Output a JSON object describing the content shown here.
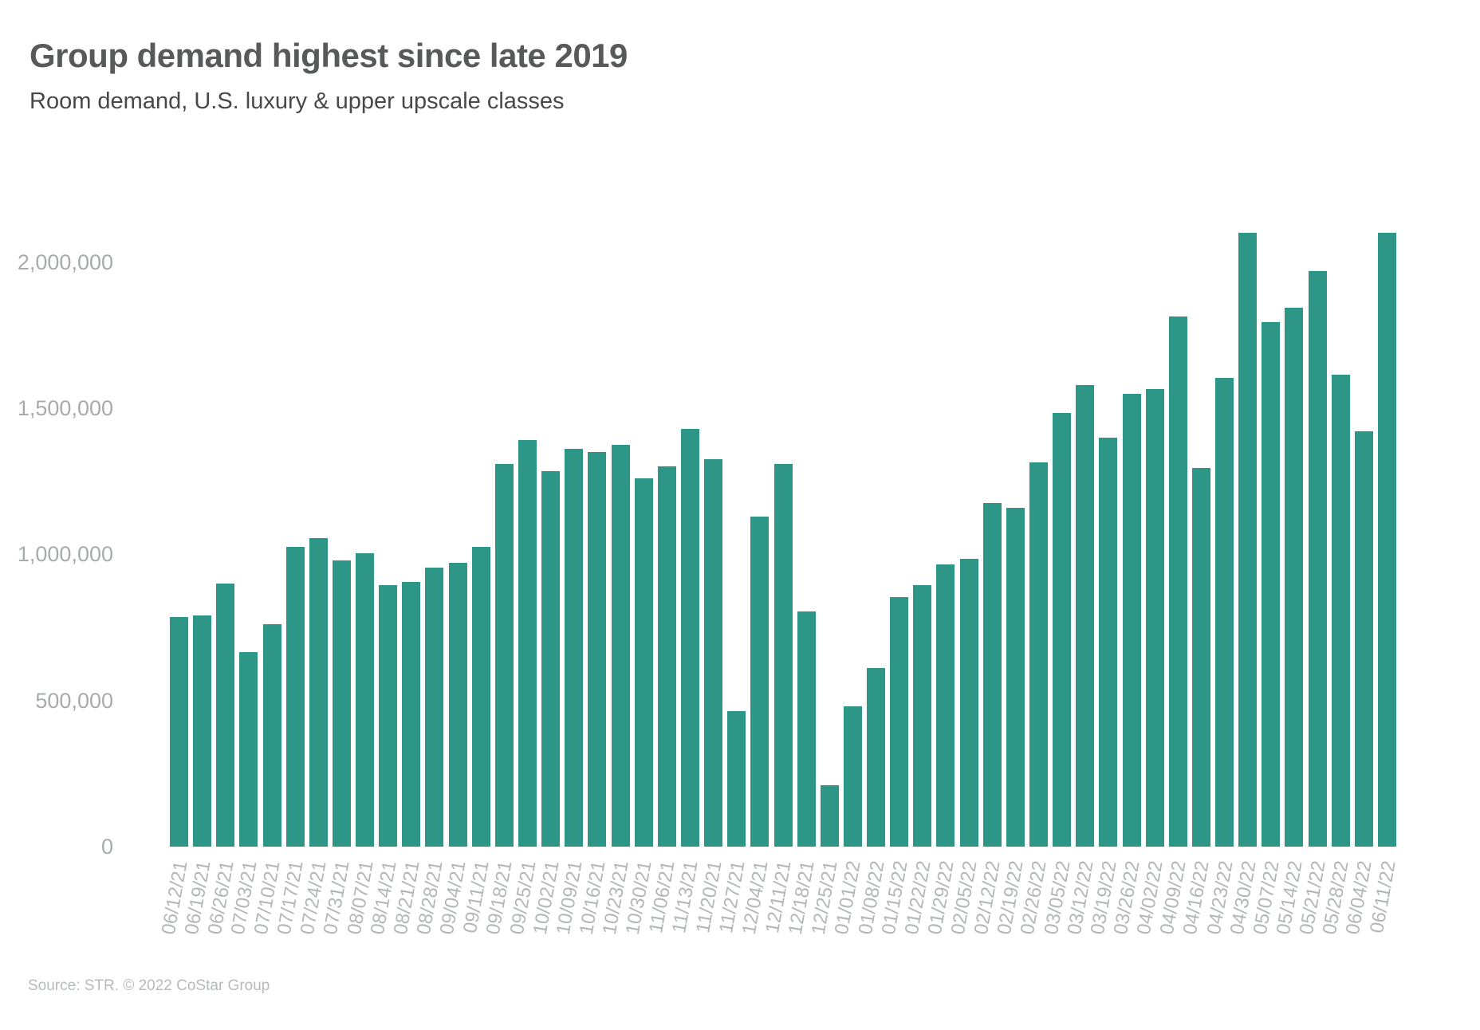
{
  "page": {
    "source": "Source: STR. © 2022 CoStar Group"
  },
  "chart_data": {
    "type": "bar",
    "title": "Group demand highest since late 2019",
    "subtitle": "Room demand, U.S. luxury & upper upscale classes",
    "series_name": "Room demand",
    "bar_color": "#2E9687",
    "grid": false,
    "legend": false,
    "xlabel": "",
    "ylabel": "",
    "ylim": [
      0,
      2200000
    ],
    "yticks": [
      {
        "value": 0,
        "label": "0"
      },
      {
        "value": 500000,
        "label": "500,000"
      },
      {
        "value": 1000000,
        "label": "1,000,000"
      },
      {
        "value": 1500000,
        "label": "1,500,000"
      },
      {
        "value": 2000000,
        "label": "2,000,000"
      }
    ],
    "categories": [
      "06/12/21",
      "06/19/21",
      "06/26/21",
      "07/03/21",
      "07/10/21",
      "07/17/21",
      "07/24/21",
      "07/31/21",
      "08/07/21",
      "08/14/21",
      "08/21/21",
      "08/28/21",
      "09/04/21",
      "09/11/21",
      "09/18/21",
      "09/25/21",
      "10/02/21",
      "10/09/21",
      "10/16/21",
      "10/23/21",
      "10/30/21",
      "11/06/21",
      "11/13/21",
      "11/20/21",
      "11/27/21",
      "12/04/21",
      "12/11/21",
      "12/18/21",
      "12/25/21",
      "01/01/22",
      "01/08/22",
      "01/15/22",
      "01/22/22",
      "01/29/22",
      "02/05/22",
      "02/12/22",
      "02/19/22",
      "02/26/22",
      "03/05/22",
      "03/12/22",
      "03/19/22",
      "03/26/22",
      "04/02/22",
      "04/09/22",
      "04/16/22",
      "04/23/22",
      "04/30/22",
      "05/07/22",
      "05/14/22",
      "05/21/22",
      "05/28/22",
      "06/04/22",
      "06/11/22"
    ],
    "values": [
      785000,
      790000,
      900000,
      665000,
      760000,
      1025000,
      1055000,
      980000,
      1005000,
      895000,
      905000,
      955000,
      970000,
      1025000,
      1310000,
      1390000,
      1285000,
      1360000,
      1350000,
      1375000,
      1260000,
      1300000,
      1430000,
      1325000,
      465000,
      1130000,
      1310000,
      805000,
      210000,
      480000,
      610000,
      855000,
      895000,
      965000,
      985000,
      1175000,
      1160000,
      1315000,
      1485000,
      1580000,
      1400000,
      1550000,
      1565000,
      1815000,
      1295000,
      1605000,
      2100000,
      1795000,
      1845000,
      1970000,
      1615000,
      1420000,
      2100000
    ]
  }
}
